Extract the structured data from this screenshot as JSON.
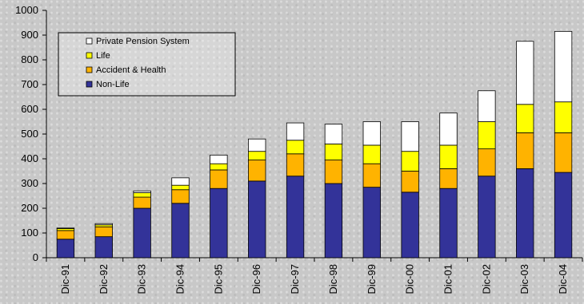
{
  "chart_data": {
    "type": "bar",
    "stacked": true,
    "categories": [
      "Dic-91",
      "Dic-92",
      "Dic-93",
      "Dic-94",
      "Dic-95",
      "Dic-96",
      "Dic-97",
      "Dic-98",
      "Dic-99",
      "Dic-00",
      "Dic-01",
      "Dic-02",
      "Dic-03",
      "Dic-04"
    ],
    "series": [
      {
        "name": "Non-Life",
        "color": "#333399",
        "values": [
          75,
          85,
          200,
          220,
          280,
          310,
          330,
          300,
          285,
          265,
          280,
          330,
          360,
          345
        ]
      },
      {
        "name": "Accident & Health",
        "color": "#ffb300",
        "values": [
          35,
          40,
          45,
          55,
          75,
          85,
          90,
          95,
          95,
          85,
          80,
          110,
          145,
          160
        ]
      },
      {
        "name": "Life",
        "color": "#ffff00",
        "values": [
          8,
          8,
          18,
          18,
          25,
          35,
          55,
          65,
          75,
          80,
          95,
          110,
          115,
          125
        ]
      },
      {
        "name": "Private Pension System",
        "color": "#ffffff",
        "values": [
          2,
          5,
          7,
          30,
          35,
          50,
          70,
          80,
          95,
          120,
          130,
          125,
          255,
          285
        ]
      }
    ],
    "title": "",
    "xlabel": "",
    "ylabel": "",
    "ylim": [
      0,
      1000
    ],
    "yticks": [
      0,
      100,
      200,
      300,
      400,
      500,
      600,
      700,
      800,
      900,
      1000
    ],
    "grid": false,
    "legend": {
      "placement": "top-left",
      "order": [
        "Private Pension System",
        "Life",
        "Accident & Health",
        "Non-Life"
      ]
    }
  }
}
